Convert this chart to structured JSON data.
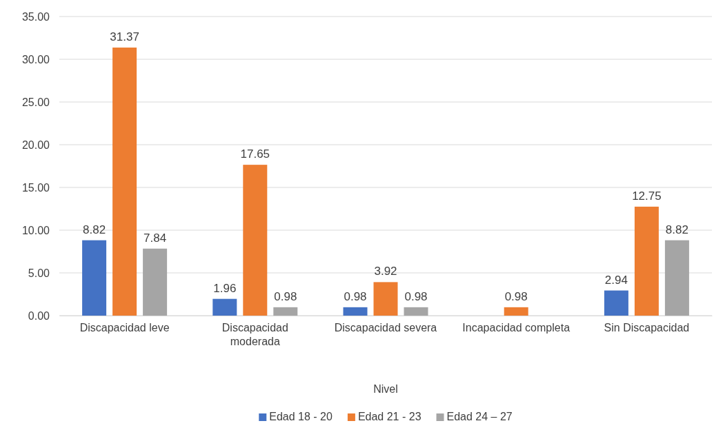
{
  "chart_data": {
    "type": "bar",
    "xlabel": "Nivel",
    "categories": [
      "Discapacidad leve",
      "Discapacidad moderada",
      "Discapacidad severa",
      "Incapacidad completa",
      "Sin Discapacidad"
    ],
    "series": [
      {
        "name": "Edad 18 - 20",
        "color": "#4472c4",
        "values": [
          8.82,
          1.96,
          0.98,
          null,
          2.94
        ]
      },
      {
        "name": "Edad 21 - 23",
        "color": "#ed7d31",
        "values": [
          31.37,
          17.65,
          3.92,
          0.98,
          12.75
        ]
      },
      {
        "name": "Edad 24 – 27",
        "color": "#a5a5a5",
        "values": [
          7.84,
          0.98,
          0.98,
          null,
          8.82
        ]
      }
    ],
    "ylim": [
      0,
      35
    ],
    "yticks": [
      {
        "value": 0,
        "label": "0.00"
      },
      {
        "value": 5,
        "label": "5.00"
      },
      {
        "value": 10,
        "label": "10.00"
      },
      {
        "value": 15,
        "label": "15.00"
      },
      {
        "value": 20,
        "label": "20.00"
      },
      {
        "value": 25,
        "label": "25.00"
      },
      {
        "value": 30,
        "label": "30.00"
      },
      {
        "value": 35,
        "label": "35.00"
      }
    ],
    "grid": "y",
    "data_labels": true,
    "legend": "bottom"
  }
}
